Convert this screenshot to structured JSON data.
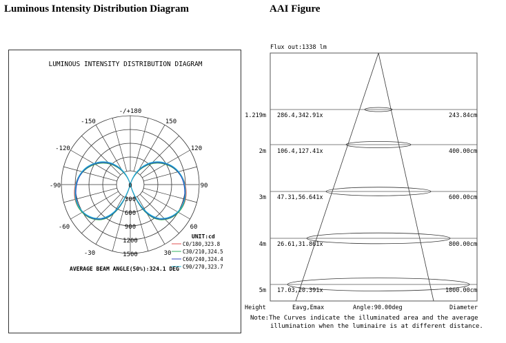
{
  "header": {
    "left_title": "Luminous Intensity  Distribution  Diagram",
    "right_title": "AAI Figure"
  },
  "polar": {
    "title": "LUMINOUS INTENSITY DISTRIBUTION DIAGRAM",
    "angle_labels": {
      "top": "-/+180",
      "l150": "-150",
      "r150": "150",
      "l120": "-120",
      "r120": "120",
      "l90": "-90",
      "r90": "90",
      "l60": "-60",
      "r60": "60",
      "l30": "-30",
      "r30": "30",
      "center": "0"
    },
    "radial_labels": [
      "300",
      "600",
      "900",
      "1200",
      "1500"
    ],
    "unit": "UNIT:cd",
    "legend": [
      {
        "label": "C0/180,323.8",
        "color": "#e05050"
      },
      {
        "label": "C30/210,324.5",
        "color": "#30b060"
      },
      {
        "label": "C60/240,324.4",
        "color": "#3040c0"
      },
      {
        "label": "C90/270,323.7",
        "color": "#20b8d8"
      }
    ],
    "beam_angle": "AVERAGE BEAM ANGLE(50%):324.1 DEG"
  },
  "aai": {
    "flux": "Flux out:1338 lm",
    "rows": [
      {
        "height": "1.219m",
        "eavg": "286.4,342.91x",
        "diameter": "243.84cm"
      },
      {
        "height": "2m",
        "eavg": "106.4,127.41x",
        "diameter": "400.00cm"
      },
      {
        "height": "3m",
        "eavg": "47.31,56.641x",
        "diameter": "600.00cm"
      },
      {
        "height": "4m",
        "eavg": "26.61,31.861x",
        "diameter": "800.00cm"
      },
      {
        "height": "5m",
        "eavg": "17.03,20.391x",
        "diameter": "1000.00cm"
      }
    ],
    "col_height": "Height",
    "col_eavg": "Eavg,Emax",
    "col_angle": "Angle:90.00deg",
    "col_diameter": "Diameter",
    "note_line1": "Note:The Curves indicate the illuminated area and the average",
    "note_line2": "illumination when the luminaire is at different distance."
  },
  "chart_data": [
    {
      "type": "polar",
      "title": "LUMINOUS INTENSITY DISTRIBUTION DIAGRAM",
      "unit": "cd",
      "radial_ticks": [
        300,
        600,
        900,
        1200,
        1500
      ],
      "series": [
        {
          "name": "C0/180,323.8",
          "color": "#e05050"
        },
        {
          "name": "C30/210,324.5",
          "color": "#30b060"
        },
        {
          "name": "C60/240,324.4",
          "color": "#3040c0"
        },
        {
          "name": "C90/270,323.7",
          "color": "#20b8d8"
        }
      ],
      "beam_angle_deg": 324.1
    },
    {
      "type": "table",
      "flux_lm": 1338,
      "angle_deg": 90.0,
      "heights_m": [
        1.219,
        2,
        3,
        4,
        5
      ],
      "eavg_lx": [
        286.4,
        106.4,
        47.31,
        26.61,
        17.03
      ],
      "emax_lx": [
        342.9,
        127.4,
        56.64,
        31.86,
        20.39
      ],
      "diameter_cm": [
        243.84,
        400.0,
        600.0,
        800.0,
        1000.0
      ]
    }
  ]
}
